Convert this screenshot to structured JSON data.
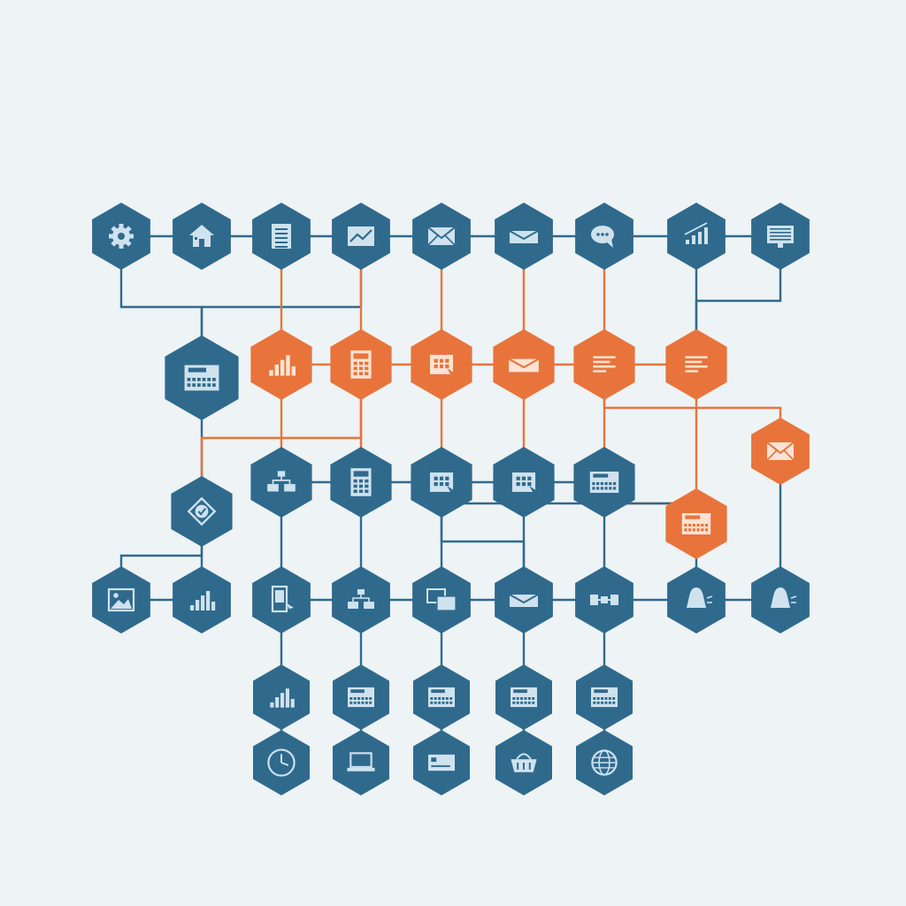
{
  "colors": {
    "background": "#eef3f5",
    "node_blue": "#2f6a8d",
    "node_orange": "#e8743b",
    "icon_light": "#cfe2ee",
    "icon_light_orange": "#fde3d3",
    "link_blue": "#2f6a8d",
    "link_orange": "#e8743b"
  },
  "nodes": [
    {
      "id": "r1c1",
      "color": "blue",
      "icon": "gear-icon"
    },
    {
      "id": "r1c2",
      "color": "blue",
      "icon": "house-icon"
    },
    {
      "id": "r1c3",
      "color": "blue",
      "icon": "document-icon"
    },
    {
      "id": "r1c4",
      "color": "blue",
      "icon": "line-chart-icon"
    },
    {
      "id": "r1c5",
      "color": "blue",
      "icon": "envelope-icon"
    },
    {
      "id": "r1c6",
      "color": "blue",
      "icon": "open-envelope-icon"
    },
    {
      "id": "r1c7",
      "color": "blue",
      "icon": "chat-bubble-icon"
    },
    {
      "id": "r1c8",
      "color": "blue",
      "icon": "growth-chart-icon"
    },
    {
      "id": "r1c9",
      "color": "blue",
      "icon": "monitor-icon"
    },
    {
      "id": "r2big",
      "color": "blue",
      "icon": "control-panel-icon"
    },
    {
      "id": "r2c2",
      "color": "orange",
      "icon": "bar-chart-icon"
    },
    {
      "id": "r2c3",
      "color": "orange",
      "icon": "calculator-icon"
    },
    {
      "id": "r2c4",
      "color": "orange",
      "icon": "calendar-cursor-icon"
    },
    {
      "id": "r2c5",
      "color": "orange",
      "icon": "open-envelope-icon"
    },
    {
      "id": "r2c6",
      "color": "orange",
      "icon": "text-lines-icon"
    },
    {
      "id": "r2c7",
      "color": "orange",
      "icon": "text-lines-icon"
    },
    {
      "id": "r3c1",
      "color": "blue",
      "icon": "checkmark-badge-icon"
    },
    {
      "id": "r3c2",
      "color": "blue",
      "icon": "flowchart-icon"
    },
    {
      "id": "r3c3",
      "color": "blue",
      "icon": "calculator-icon"
    },
    {
      "id": "r3c4",
      "color": "blue",
      "icon": "calendar-cursor-icon"
    },
    {
      "id": "r3c5",
      "color": "blue",
      "icon": "calendar-cursor-icon"
    },
    {
      "id": "r3c6",
      "color": "blue",
      "icon": "control-panel-icon"
    },
    {
      "id": "r3c8",
      "color": "orange",
      "icon": "envelope-icon"
    },
    {
      "id": "r3c7",
      "color": "orange",
      "icon": "control-panel-icon"
    },
    {
      "id": "r4c1",
      "color": "blue",
      "icon": "image-icon"
    },
    {
      "id": "r4c2",
      "color": "blue",
      "icon": "bar-chart-icon"
    },
    {
      "id": "r4c3",
      "color": "blue",
      "icon": "mobile-cursor-icon"
    },
    {
      "id": "r4c4",
      "color": "blue",
      "icon": "flowchart-icon"
    },
    {
      "id": "r4c5",
      "color": "blue",
      "icon": "windows-icon"
    },
    {
      "id": "r4c6",
      "color": "blue",
      "icon": "open-envelope-icon"
    },
    {
      "id": "r4c7",
      "color": "blue",
      "icon": "pipeline-icon"
    },
    {
      "id": "r4c8",
      "color": "blue",
      "icon": "bell-icon"
    },
    {
      "id": "r4c9",
      "color": "blue",
      "icon": "bell-icon"
    },
    {
      "id": "r5c1",
      "color": "blue",
      "icon": "bar-chart-icon"
    },
    {
      "id": "r5c2",
      "color": "blue",
      "icon": "control-panel-icon"
    },
    {
      "id": "r5c3",
      "color": "blue",
      "icon": "control-panel-icon"
    },
    {
      "id": "r5c4",
      "color": "blue",
      "icon": "control-panel-icon"
    },
    {
      "id": "r5c5",
      "color": "blue",
      "icon": "control-panel-icon"
    },
    {
      "id": "r6c1",
      "color": "blue",
      "icon": "clock-icon"
    },
    {
      "id": "r6c2",
      "color": "blue",
      "icon": "laptop-icon"
    },
    {
      "id": "r6c3",
      "color": "blue",
      "icon": "card-icon"
    },
    {
      "id": "r6c4",
      "color": "blue",
      "icon": "basket-icon"
    },
    {
      "id": "r6c5",
      "color": "blue",
      "icon": "globe-icon"
    }
  ],
  "links": [
    {
      "from": "r1c1",
      "to": "r1c2",
      "color": "blue"
    },
    {
      "from": "r1c2",
      "to": "r1c3",
      "color": "blue"
    },
    {
      "from": "r1c3",
      "to": "r1c4",
      "color": "blue"
    },
    {
      "from": "r1c4",
      "to": "r1c5",
      "color": "blue"
    },
    {
      "from": "r1c5",
      "to": "r1c6",
      "color": "blue"
    },
    {
      "from": "r1c6",
      "to": "r1c7",
      "color": "blue"
    },
    {
      "from": "r1c7",
      "to": "r1c8",
      "color": "blue"
    },
    {
      "from": "r1c8",
      "to": "r1c9",
      "color": "blue"
    },
    {
      "from": "r1c1",
      "to": "r2big",
      "color": "blue"
    },
    {
      "from": "r1c4",
      "to": "r2big",
      "color": "blue"
    },
    {
      "from": "r1c3",
      "to": "r2c2",
      "color": "orange"
    },
    {
      "from": "r1c4",
      "to": "r2c3",
      "color": "orange"
    },
    {
      "from": "r1c5",
      "to": "r2c4",
      "color": "orange"
    },
    {
      "from": "r1c6",
      "to": "r2c5",
      "color": "orange"
    },
    {
      "from": "r1c7",
      "to": "r2c6",
      "color": "orange"
    },
    {
      "from": "r1c8",
      "to": "r2c7",
      "color": "blue"
    },
    {
      "from": "r1c9",
      "to": "r2c7",
      "color": "blue"
    },
    {
      "from": "r2c2",
      "to": "r2c3",
      "color": "orange"
    },
    {
      "from": "r2c3",
      "to": "r2c4",
      "color": "orange"
    },
    {
      "from": "r2c4",
      "to": "r2c5",
      "color": "orange"
    },
    {
      "from": "r2c5",
      "to": "r2c6",
      "color": "orange"
    },
    {
      "from": "r2c6",
      "to": "r2c7",
      "color": "orange"
    },
    {
      "from": "r2big",
      "to": "r3c1",
      "color": "blue"
    },
    {
      "from": "r2c2",
      "to": "r3c2",
      "color": "orange"
    },
    {
      "from": "r2c3",
      "to": "r3c1",
      "color": "orange"
    },
    {
      "from": "r2c3",
      "to": "r3c3",
      "color": "orange"
    },
    {
      "from": "r2c4",
      "to": "r3c4",
      "color": "orange"
    },
    {
      "from": "r2c5",
      "to": "r3c5",
      "color": "orange"
    },
    {
      "from": "r2c6",
      "to": "r3c6",
      "color": "orange"
    },
    {
      "from": "r2c7",
      "to": "r3c7",
      "color": "orange"
    },
    {
      "from": "r2c6",
      "to": "r3c8",
      "color": "orange"
    },
    {
      "from": "r3c2",
      "to": "r3c3",
      "color": "blue"
    },
    {
      "from": "r3c3",
      "to": "r3c4",
      "color": "blue"
    },
    {
      "from": "r3c4",
      "to": "r3c5",
      "color": "blue"
    },
    {
      "from": "r3c5",
      "to": "r3c6",
      "color": "blue"
    },
    {
      "from": "r3c6",
      "to": "r3c7",
      "color": "orange"
    },
    {
      "from": "r3c4",
      "to": "r3c7",
      "color": "blue"
    },
    {
      "from": "r3c1",
      "to": "r4c1",
      "color": "blue"
    },
    {
      "from": "r3c1",
      "to": "r4c2",
      "color": "blue"
    },
    {
      "from": "r3c2",
      "to": "r4c3",
      "color": "blue"
    },
    {
      "from": "r3c3",
      "to": "r4c4",
      "color": "blue"
    },
    {
      "from": "r3c4",
      "to": "r4c5",
      "color": "blue"
    },
    {
      "from": "r3c4",
      "to": "r4c6",
      "color": "blue"
    },
    {
      "from": "r3c5",
      "to": "r4c6",
      "color": "blue"
    },
    {
      "from": "r3c6",
      "to": "r4c7",
      "color": "blue"
    },
    {
      "from": "r3c7",
      "to": "r4c8",
      "color": "blue"
    },
    {
      "from": "r3c8",
      "to": "r4c9",
      "color": "blue"
    },
    {
      "from": "r4c1",
      "to": "r4c2",
      "color": "blue"
    },
    {
      "from": "r4c3",
      "to": "r4c4",
      "color": "blue"
    },
    {
      "from": "r4c4",
      "to": "r4c5",
      "color": "blue"
    },
    {
      "from": "r4c5",
      "to": "r4c6",
      "color": "blue"
    },
    {
      "from": "r4c6",
      "to": "r4c7",
      "color": "blue"
    },
    {
      "from": "r4c7",
      "to": "r4c8",
      "color": "blue"
    },
    {
      "from": "r4c8",
      "to": "r4c9",
      "color": "blue"
    },
    {
      "from": "r4c3",
      "to": "r5c1",
      "color": "blue"
    },
    {
      "from": "r4c4",
      "to": "r5c2",
      "color": "blue"
    },
    {
      "from": "r4c5",
      "to": "r5c3",
      "color": "blue"
    },
    {
      "from": "r4c6",
      "to": "r5c4",
      "color": "blue"
    },
    {
      "from": "r4c7",
      "to": "r5c5",
      "color": "blue"
    },
    {
      "from": "r5c1",
      "to": "r6c1",
      "color": "blue"
    },
    {
      "from": "r5c2",
      "to": "r6c2",
      "color": "blue"
    },
    {
      "from": "r5c3",
      "to": "r6c3",
      "color": "blue"
    },
    {
      "from": "r5c4",
      "to": "r6c4",
      "color": "blue"
    },
    {
      "from": "r5c5",
      "to": "r6c5",
      "color": "blue"
    }
  ]
}
